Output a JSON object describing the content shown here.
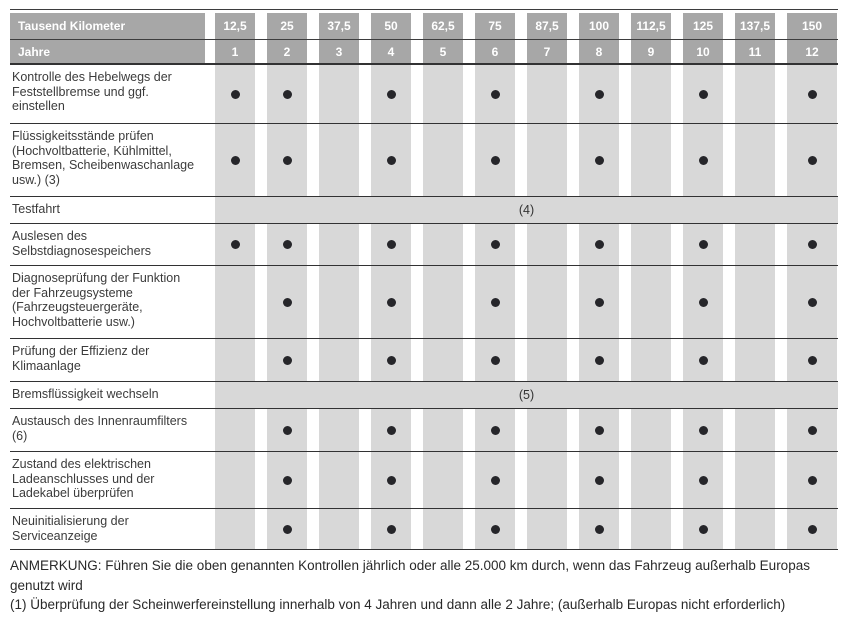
{
  "table": {
    "km_header_label": "Tausend Kilometer",
    "years_header_label": "Jahre",
    "km_values": [
      "12,5",
      "25",
      "37,5",
      "50",
      "62,5",
      "75",
      "87,5",
      "100",
      "112,5",
      "125",
      "137,5",
      "150"
    ],
    "year_values": [
      "1",
      "2",
      "3",
      "4",
      "5",
      "6",
      "7",
      "8",
      "9",
      "10",
      "11",
      "12"
    ],
    "rows": [
      {
        "label": "Kontrolle des Hebelwegs der Feststellbremse und ggf. einstellen",
        "marks": [
          1,
          2,
          4,
          6,
          8,
          10,
          12
        ]
      },
      {
        "label": "Flüssigkeitsstände prüfen (Hochvoltbatterie, Kühlmittel, Bremsen, Scheibenwaschanlage usw.) (3)",
        "marks": [
          1,
          2,
          4,
          6,
          8,
          10,
          12
        ]
      },
      {
        "label": "Testfahrt",
        "span_label": "(4)"
      },
      {
        "label": "Auslesen des Selbstdiagnosespeichers",
        "marks": [
          1,
          2,
          4,
          6,
          8,
          10,
          12
        ]
      },
      {
        "label": "Diagnoseprüfung der Funktion der Fahrzeugsysteme (Fahrzeugsteuergeräte, Hochvoltbatterie usw.)",
        "marks": [
          2,
          4,
          6,
          8,
          10,
          12
        ]
      },
      {
        "label": "Prüfung der Effizienz der Klimaanlage",
        "marks": [
          2,
          4,
          6,
          8,
          10,
          12
        ]
      },
      {
        "label": "Bremsflüssigkeit wechseln",
        "span_label": "(5)"
      },
      {
        "label": "Austausch des Innenraumfilters (6)",
        "marks": [
          2,
          4,
          6,
          8,
          10,
          12
        ]
      },
      {
        "label": "Zustand des elektrischen Ladeanschlusses und der Ladekabel überprüfen",
        "marks": [
          2,
          4,
          6,
          8,
          10,
          12
        ]
      },
      {
        "label": "Neuinitialisierung der Serviceanzeige",
        "marks": [
          2,
          4,
          6,
          8,
          10,
          12
        ]
      }
    ]
  },
  "footer": {
    "note": "ANMERKUNG: Führen Sie die oben genannten Kontrollen jährlich oder alle 25.000 km durch, wenn das Fahrzeug außerhalb Europas genutzt wird",
    "footnote1": "(1) Überprüfung der Scheinwerfereinstellung innerhalb von 4 Jahren und dann alle 2 Jahre; (außerhalb Europas nicht erforderlich)"
  },
  "colors": {
    "header_gray": "#a7a7a7",
    "stripe_gray": "#d8d8d8",
    "dot_color": "#26262a",
    "line_color": "#323233"
  }
}
